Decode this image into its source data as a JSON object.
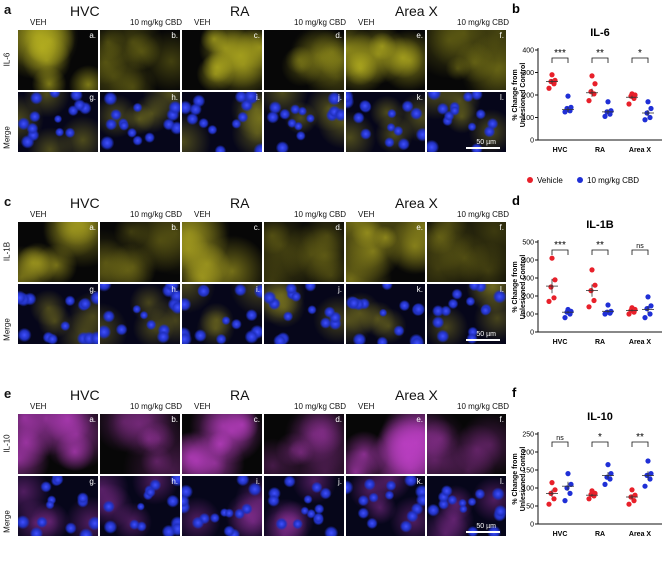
{
  "micrographs": [
    {
      "label": "a",
      "marker": "IL-6",
      "merge_label": "Merge",
      "regions": [
        "HVC",
        "RA",
        "Area X"
      ],
      "conditions": [
        "VEH",
        "10 mg/kg CBD",
        "VEH",
        "10 mg/kg CBD",
        "VEH",
        "10 mg/kg CBD"
      ],
      "top_letters": [
        "a.",
        "b.",
        "c.",
        "d.",
        "e.",
        "f."
      ],
      "bottom_letters": [
        "g.",
        "h.",
        "i.",
        "j.",
        "k.",
        "l."
      ],
      "scale": "50 µm",
      "stain_color": "#b8b220"
    },
    {
      "label": "c",
      "marker": "IL-1B",
      "merge_label": "Merge",
      "regions": [
        "HVC",
        "RA",
        "Area X"
      ],
      "conditions": [
        "VEH",
        "10 mg/kg CBD",
        "VEH",
        "10 mg/kg CBD",
        "VEH",
        "10 mg/kg CBD"
      ],
      "top_letters": [
        "a.",
        "b.",
        "c.",
        "d.",
        "e.",
        "f."
      ],
      "bottom_letters": [
        "g.",
        "h.",
        "i.",
        "j.",
        "k.",
        "l."
      ],
      "scale": "50 µm",
      "stain_color": "#a8a020"
    },
    {
      "label": "e",
      "marker": "IL-10",
      "merge_label": "Merge",
      "regions": [
        "HVC",
        "RA",
        "Area X"
      ],
      "conditions": [
        "VEH",
        "10 mg/kg CBD",
        "VEH",
        "10 mg/kg CBD",
        "VEH",
        "10 mg/kg CBD"
      ],
      "top_letters": [
        "a.",
        "b.",
        "c.",
        "d.",
        "e.",
        "f."
      ],
      "bottom_letters": [
        "g.",
        "h.",
        "i.",
        "j.",
        "k.",
        "l."
      ],
      "scale": "50 µm",
      "stain_color": "#c040c8"
    }
  ],
  "legend": {
    "vehicle": "Vehicle",
    "cbd": "10 mg/kg CBD"
  },
  "colors": {
    "vehicle": "#e8202a",
    "cbd": "#1f2fd6"
  },
  "chart_data": [
    {
      "label": "b",
      "type": "scatter",
      "title": "IL-6",
      "ylabel": "% Change from Unlesioned Control",
      "categories": [
        "HVC",
        "RA",
        "Area X"
      ],
      "ylim": [
        0,
        400
      ],
      "yticks": [
        0,
        100,
        200,
        300,
        400
      ],
      "series": [
        {
          "name": "Vehicle",
          "values": [
            [
              230,
              250,
              260,
              265,
              290
            ],
            [
              175,
              205,
              215,
              250,
              285
            ],
            [
              160,
              185,
              195,
              200,
              205
            ]
          ],
          "means": [
            260,
            210,
            190
          ]
        },
        {
          "name": "10 mg/kg CBD",
          "values": [
            [
              125,
              130,
              140,
              145,
              195
            ],
            [
              105,
              115,
              125,
              130,
              170
            ],
            [
              90,
              100,
              120,
              140,
              170
            ]
          ],
          "means": [
            135,
            125,
            120
          ]
        }
      ],
      "significance": [
        "***",
        "**",
        "*"
      ]
    },
    {
      "label": "d",
      "type": "scatter",
      "title": "IL-1B",
      "ylabel": "% Change from Unlesioned Control",
      "categories": [
        "HVC",
        "RA",
        "Area X"
      ],
      "ylim": [
        0,
        500
      ],
      "yticks": [
        0,
        100,
        200,
        300,
        400,
        500
      ],
      "series": [
        {
          "name": "Vehicle",
          "values": [
            [
              170,
              190,
              250,
              290,
              410
            ],
            [
              140,
              175,
              230,
              260,
              345
            ],
            [
              100,
              110,
              120,
              125,
              135
            ]
          ],
          "means": [
            255,
            230,
            120
          ]
        },
        {
          "name": "10 mg/kg CBD",
          "values": [
            [
              80,
              100,
              110,
              115,
              125
            ],
            [
              100,
              105,
              110,
              115,
              150
            ],
            [
              80,
              100,
              130,
              145,
              195
            ]
          ],
          "means": [
            110,
            115,
            125
          ]
        }
      ],
      "significance": [
        "***",
        "**",
        "ns"
      ]
    },
    {
      "label": "f",
      "type": "scatter",
      "title": "IL-10",
      "ylabel": "% Change from Unlesioned Control",
      "categories": [
        "HVC",
        "RA",
        "Area X"
      ],
      "ylim": [
        0,
        250
      ],
      "yticks": [
        0,
        50,
        100,
        150,
        200,
        250
      ],
      "series": [
        {
          "name": "Vehicle",
          "values": [
            [
              55,
              70,
              85,
              95,
              115
            ],
            [
              70,
              78,
              82,
              85,
              92
            ],
            [
              55,
              65,
              75,
              80,
              95
            ]
          ],
          "means": [
            85,
            80,
            75
          ]
        },
        {
          "name": "10 mg/kg CBD",
          "values": [
            [
              65,
              85,
              100,
              110,
              140
            ],
            [
              110,
              125,
              130,
              140,
              165
            ],
            [
              105,
              125,
              135,
              140,
              175
            ]
          ],
          "means": [
            105,
            135,
            135
          ]
        }
      ],
      "significance": [
        "ns",
        "*",
        "**"
      ]
    }
  ]
}
